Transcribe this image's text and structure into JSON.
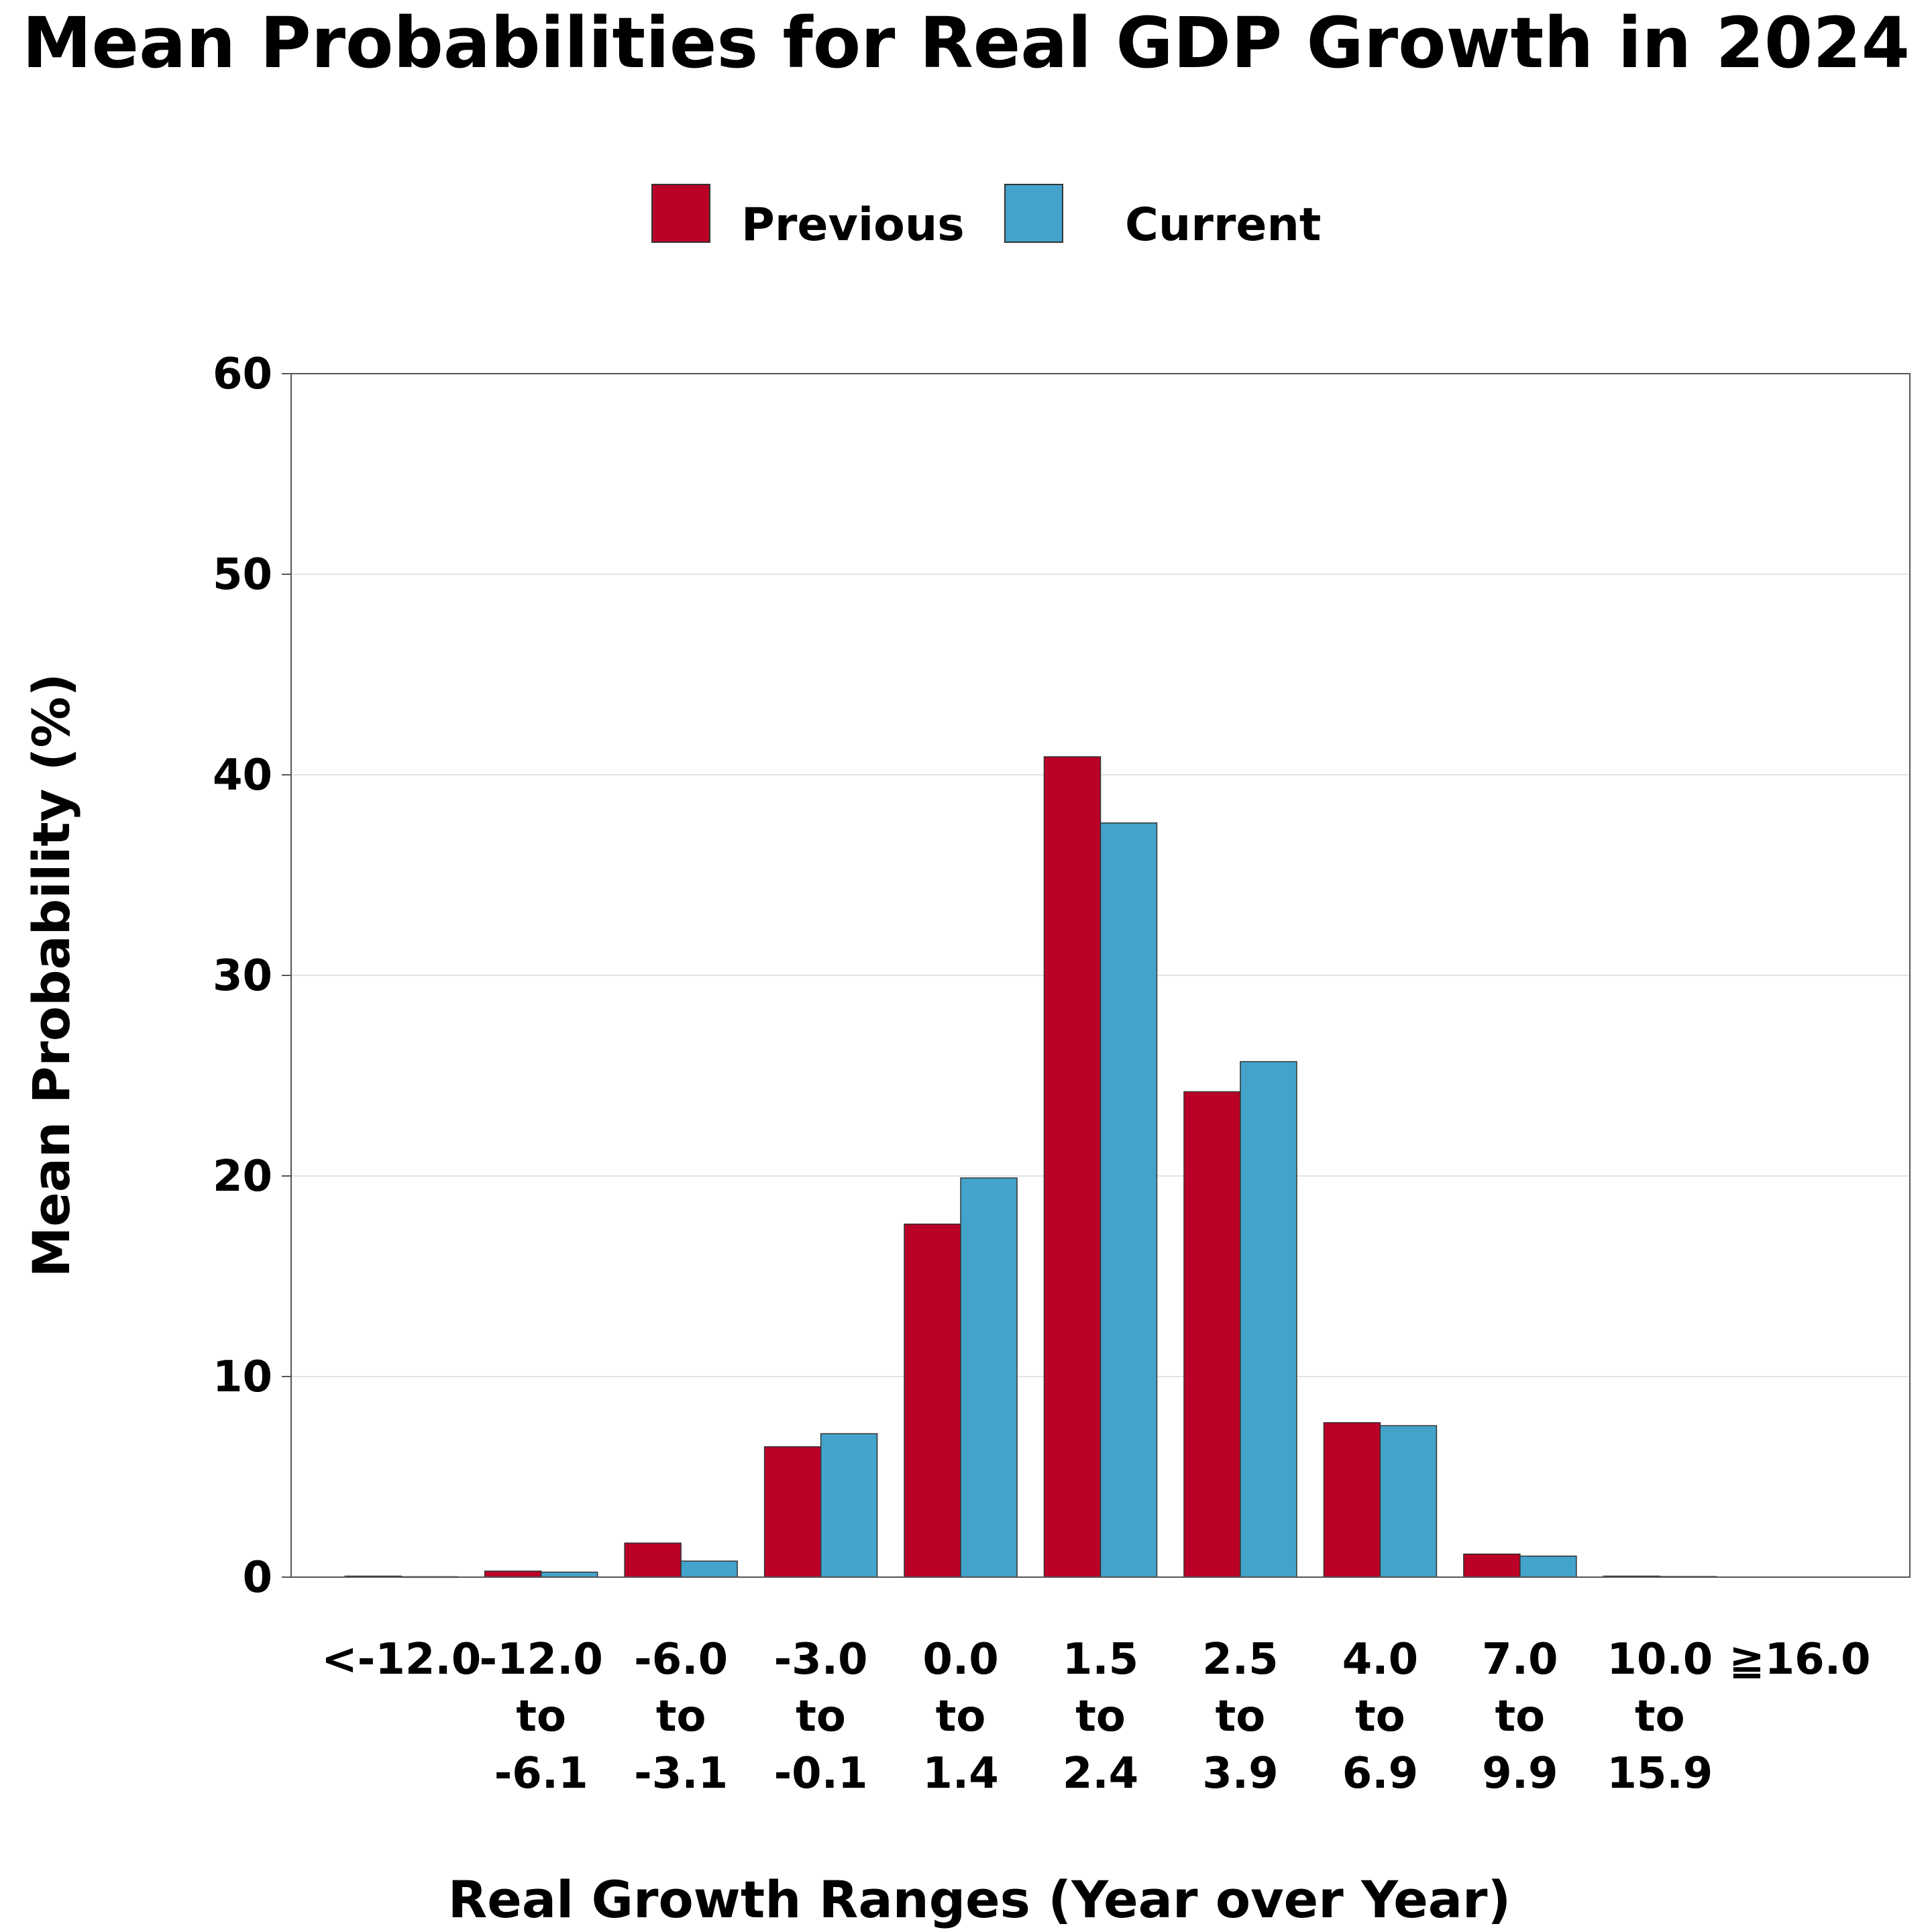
{
  "chart_data": {
    "type": "bar",
    "title": "Mean Probabilities for Real GDP Growth in 2024",
    "xlabel": "Real Growth Ranges (Year over Year)",
    "ylabel": "Mean Probability (%)",
    "ylim": [
      0,
      60
    ],
    "yticks": [
      "0",
      "10",
      "20",
      "30",
      "40",
      "50",
      "60"
    ],
    "legend_position": "top-center",
    "grid": "horizontal",
    "categories": [
      [
        "<-12.0"
      ],
      [
        "-12.0",
        "to",
        "-6.1"
      ],
      [
        "-6.0",
        "to",
        "-3.1"
      ],
      [
        "-3.0",
        "to",
        "-0.1"
      ],
      [
        "0.0",
        "to",
        "1.4"
      ],
      [
        "1.5",
        "to",
        "2.4"
      ],
      [
        "2.5",
        "to",
        "3.9"
      ],
      [
        "4.0",
        "to",
        "6.9"
      ],
      [
        "7.0",
        "to",
        "9.9"
      ],
      [
        "10.0",
        "to",
        "15.9"
      ],
      [
        "≧16.0"
      ]
    ],
    "series": [
      {
        "name": "Previous",
        "color": "#BB0027",
        "values": [
          0.05,
          0.3,
          1.7,
          6.5,
          17.6,
          40.9,
          24.2,
          7.7,
          1.15,
          0.05,
          0.0
        ]
      },
      {
        "name": "Current",
        "color": "#44A3CB",
        "values": [
          0.02,
          0.25,
          0.8,
          7.15,
          19.9,
          37.6,
          25.7,
          7.55,
          1.05,
          0.03,
          0.0
        ]
      }
    ]
  }
}
